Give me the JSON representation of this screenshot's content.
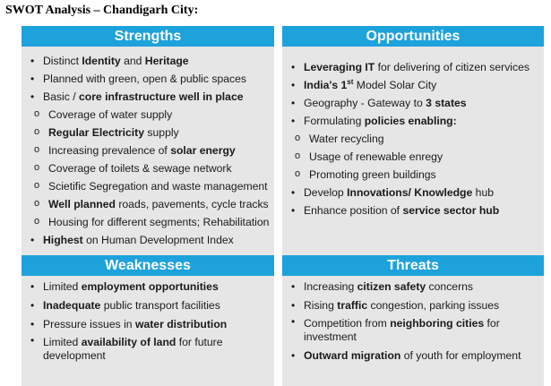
{
  "title": "SWOT Analysis – Chandigarh City:",
  "colors": {
    "header_bg": "#1ea2dc",
    "header_text": "#ffffff",
    "body_bg": "#e6e6e6"
  },
  "strengths": {
    "header": "Strengths",
    "items": [
      {
        "level": 1,
        "html": "Distinct <b>Identity</b> and <b>Heritage</b>"
      },
      {
        "level": 1,
        "html": "Planned with green, open &amp; public spaces"
      },
      {
        "level": 1,
        "html": "Basic / <b>core infrastructure well in place</b>"
      },
      {
        "level": 2,
        "html": "Coverage of water supply"
      },
      {
        "level": 2,
        "html": "<b>Regular Electricity</b> supply"
      },
      {
        "level": 2,
        "html": "Increasing prevalence of <b>solar energy</b>"
      },
      {
        "level": 2,
        "html": "Coverage of toilets &amp; sewage network"
      },
      {
        "level": 2,
        "html": "Scietific Segregation and waste management"
      },
      {
        "level": 2,
        "html": "<b>Well planned</b> roads, pavements, cycle tracks"
      },
      {
        "level": 2,
        "html": "Housing for different segments; Rehabilitation"
      },
      {
        "level": 1,
        "html": "<b>Highest</b> on Human Development Index"
      }
    ]
  },
  "opportunities": {
    "header": "Opportunities",
    "items": [
      {
        "level": 1,
        "html": "<b>Leveraging IT</b> for delivering of citizen services"
      },
      {
        "level": 1,
        "html": "<b>India's 1<sup>st</sup></b> Model Solar City"
      },
      {
        "level": 1,
        "html": "Geography - Gateway to <b>3 states</b>"
      },
      {
        "level": 1,
        "html": "Formulating <b>policies enabling:</b>"
      },
      {
        "level": 2,
        "html": "Water recycling"
      },
      {
        "level": 2,
        "html": "Usage of renewable enregy"
      },
      {
        "level": 2,
        "html": "Promoting green buildings"
      },
      {
        "level": 1,
        "html": "Develop <b>Innovations/ Knowledge</b> hub"
      },
      {
        "level": 1,
        "html": "Enhance position of <b>service sector hub</b>"
      }
    ]
  },
  "weaknesses": {
    "header": "Weaknesses",
    "items": [
      {
        "level": 1,
        "html": "Limited <b>employment opportunities</b>"
      },
      {
        "level": 1,
        "html": "<b>Inadequate</b> public transport facilities"
      },
      {
        "level": 1,
        "html": "Pressure issues in <b>water distribution</b>"
      },
      {
        "level": 1,
        "wrap": true,
        "html": "Limited <b>availability of land</b> for future development"
      }
    ]
  },
  "threats": {
    "header": "Threats",
    "items": [
      {
        "level": 1,
        "html": "Increasing <b>citizen safety</b> concerns"
      },
      {
        "level": 1,
        "html": "Rising <b>traffic</b> congestion, parking issues"
      },
      {
        "level": 1,
        "wrap": true,
        "html": "Competition from <b>neighboring cities</b> for investment"
      },
      {
        "level": 1,
        "html": "<b>Outward migration</b> of youth for employment"
      }
    ]
  }
}
